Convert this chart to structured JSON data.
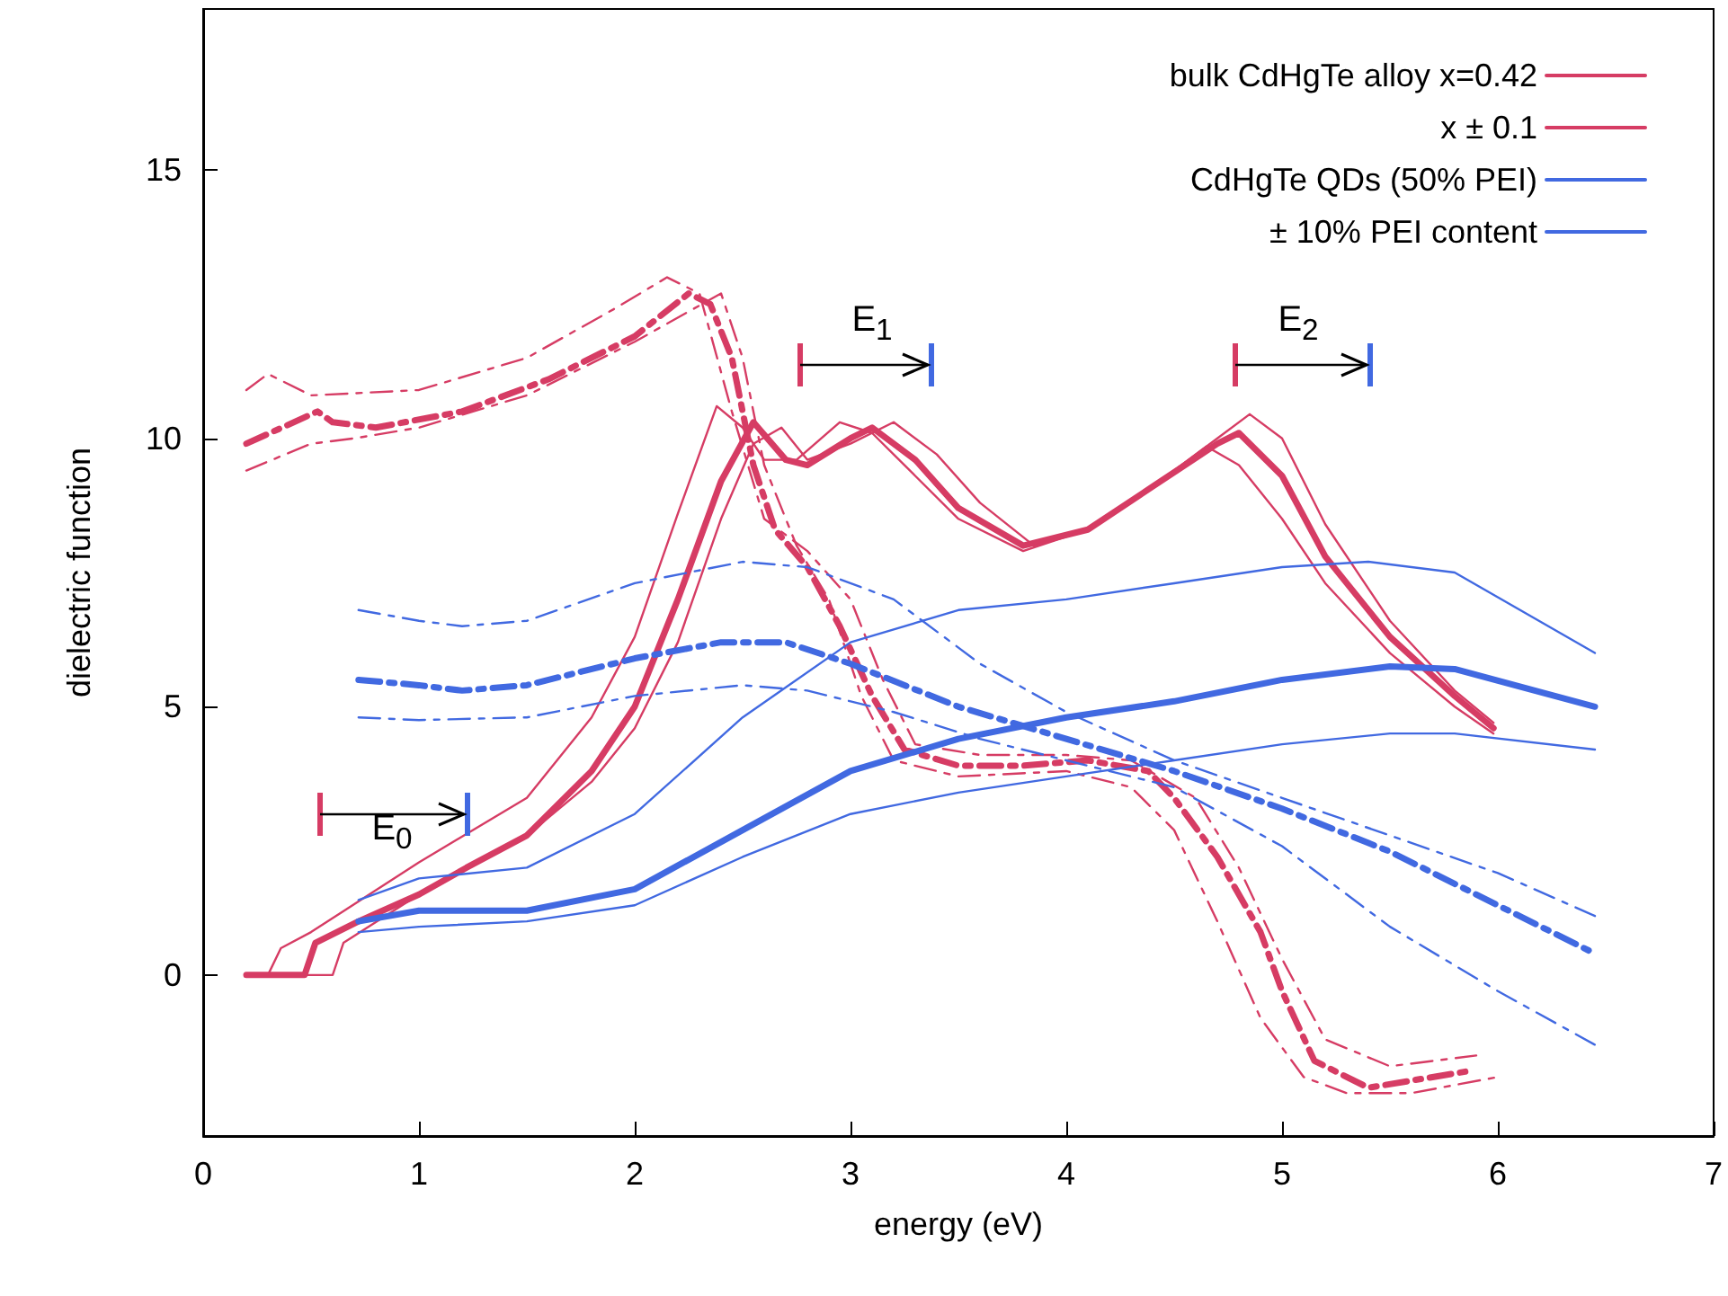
{
  "chart_data": {
    "type": "line",
    "xlabel": "energy (eV)",
    "ylabel": "dielectric function",
    "xlim": [
      0,
      7
    ],
    "xticks": [
      0,
      1,
      2,
      3,
      4,
      5,
      6,
      7
    ],
    "ylim": [
      -3,
      18
    ],
    "yticks": [
      0,
      5,
      10,
      15
    ],
    "grid": false,
    "legend": "top right",
    "marker": "none",
    "annotations": [
      "E$_{0}$",
      "E$_{1}$",
      "E$_{2}$"
    ],
    "series": [
      {
        "name": "bulk CdHgTe alloy x=0.42",
        "color": "#d63c64",
        "line_style": "solid",
        "x": [
          0.2,
          0.47,
          0.52,
          0.72,
          1.0,
          1.22,
          1.5,
          1.8,
          2.0,
          2.2,
          2.4,
          2.55,
          2.7,
          2.8,
          3.0,
          3.1,
          3.3,
          3.5,
          3.8,
          4.1,
          4.4,
          4.7,
          4.8,
          5.0,
          5.2,
          5.5,
          5.8,
          5.98
        ],
        "values": [
          0,
          0,
          0.6,
          1.0,
          1.5,
          2.0,
          2.6,
          3.8,
          5.0,
          7.0,
          9.2,
          10.3,
          9.6,
          9.5,
          10.0,
          10.2,
          9.6,
          8.7,
          8.0,
          8.3,
          9.1,
          9.9,
          10.1,
          9.3,
          7.8,
          6.3,
          5.2,
          4.6
        ]
      },
      {
        "name": "x ± 0.1",
        "color": "#d63c64",
        "line_style": "solid",
        "x": [
          0.2,
          0.3,
          0.36,
          0.5,
          1.0,
          1.5,
          1.8,
          2.0,
          2.2,
          2.38,
          2.5,
          2.6,
          2.75,
          2.95,
          3.1,
          3.3,
          3.5,
          3.8,
          4.1,
          4.4,
          4.65,
          4.8,
          5.0,
          5.2,
          5.5,
          5.8,
          5.98
        ],
        "values": [
          0,
          0,
          0.5,
          0.8,
          2.1,
          3.3,
          4.8,
          6.3,
          8.6,
          10.6,
          10.2,
          9.6,
          9.6,
          10.3,
          10.1,
          9.3,
          8.5,
          7.9,
          8.3,
          9.1,
          9.85,
          9.5,
          8.5,
          7.3,
          6.0,
          5.0,
          4.5
        ]
      },
      {
        "color": "#d63c64",
        "line_style": "solid",
        "x": [
          0.2,
          0.6,
          0.65,
          1.0,
          1.5,
          1.8,
          2.0,
          2.2,
          2.4,
          2.55,
          2.68,
          2.8,
          3.0,
          3.2,
          3.4,
          3.6,
          3.85,
          4.1,
          4.4,
          4.7,
          4.85,
          5.0,
          5.2,
          5.5,
          5.8,
          5.98
        ],
        "values": [
          0,
          0,
          0.6,
          1.5,
          2.6,
          3.6,
          4.6,
          6.2,
          8.5,
          9.9,
          10.2,
          9.6,
          9.9,
          10.3,
          9.7,
          8.8,
          8.0,
          8.3,
          9.1,
          10.0,
          10.45,
          10.0,
          8.4,
          6.6,
          5.3,
          4.7
        ]
      },
      {
        "color": "#d63c64",
        "line_style": "dashed",
        "x": [
          0.2,
          0.53,
          0.6,
          0.8,
          1.2,
          1.6,
          2.0,
          2.25,
          2.35,
          2.45,
          2.55,
          2.65,
          2.8,
          2.95,
          3.1,
          3.25,
          3.5,
          3.8,
          4.1,
          4.38,
          4.5,
          4.7,
          4.9,
          5.0,
          5.15,
          5.4,
          5.85
        ],
        "values": [
          9.9,
          10.5,
          10.3,
          10.2,
          10.5,
          11.1,
          11.9,
          12.7,
          12.5,
          11.5,
          9.5,
          8.3,
          7.6,
          6.5,
          5.2,
          4.2,
          3.9,
          3.9,
          4.0,
          3.8,
          3.3,
          2.2,
          0.8,
          -0.3,
          -1.6,
          -2.1,
          -1.8
        ]
      },
      {
        "color": "#d63c64",
        "line_style": "dashed",
        "x": [
          0.2,
          0.3,
          0.35,
          0.5,
          1.0,
          1.5,
          1.9,
          2.15,
          2.3,
          2.45,
          2.6,
          2.8,
          3.0,
          3.15,
          3.3,
          3.6,
          4.0,
          4.3,
          4.6,
          4.8,
          5.0,
          5.2,
          5.5,
          5.9
        ],
        "values": [
          10.9,
          11.2,
          11.1,
          10.8,
          10.9,
          11.5,
          12.4,
          13.0,
          12.7,
          10.5,
          8.5,
          7.9,
          7.0,
          5.5,
          4.3,
          4.1,
          4.1,
          4.0,
          3.3,
          2.0,
          0.3,
          -1.2,
          -1.7,
          -1.5
        ]
      },
      {
        "color": "#d63c64",
        "line_style": "dashed",
        "x": [
          0.2,
          0.5,
          0.7,
          1.0,
          1.5,
          2.0,
          2.4,
          2.5,
          2.6,
          2.75,
          2.9,
          3.05,
          3.2,
          3.5,
          4.0,
          4.3,
          4.5,
          4.7,
          4.9,
          5.1,
          5.3,
          5.6,
          6.0
        ],
        "values": [
          9.4,
          9.9,
          10.0,
          10.2,
          10.8,
          11.8,
          12.7,
          11.5,
          9.5,
          8.0,
          7.0,
          5.2,
          4.0,
          3.7,
          3.8,
          3.5,
          2.7,
          1.0,
          -0.8,
          -1.9,
          -2.2,
          -2.2,
          -1.9
        ]
      },
      {
        "name": "CdHgTe QDs (50% PEI)",
        "color": "#4169e1",
        "line_style": "solid",
        "x": [
          0.72,
          1.0,
          1.5,
          2.0,
          2.5,
          3.0,
          3.5,
          4.0,
          4.5,
          5.0,
          5.5,
          5.8,
          6.45
        ],
        "values": [
          1.0,
          1.2,
          1.2,
          1.6,
          2.7,
          3.8,
          4.4,
          4.8,
          5.1,
          5.5,
          5.75,
          5.7,
          5.0
        ]
      },
      {
        "name": "± 10% PEI content",
        "color": "#4169e1",
        "line_style": "solid",
        "x": [
          0.72,
          1.0,
          1.5,
          2.0,
          2.5,
          3.0,
          3.5,
          4.0,
          4.5,
          5.0,
          5.4,
          5.8,
          6.45
        ],
        "values": [
          1.4,
          1.8,
          2.0,
          3.0,
          4.8,
          6.2,
          6.8,
          7.0,
          7.3,
          7.6,
          7.7,
          7.5,
          6.0
        ]
      },
      {
        "color": "#4169e1",
        "line_style": "solid",
        "x": [
          0.72,
          1.0,
          1.5,
          2.0,
          2.5,
          3.0,
          3.5,
          4.0,
          4.5,
          5.0,
          5.5,
          5.8,
          6.45
        ],
        "values": [
          0.8,
          0.9,
          1.0,
          1.3,
          2.2,
          3.0,
          3.4,
          3.7,
          4.0,
          4.3,
          4.5,
          4.5,
          4.2
        ]
      },
      {
        "color": "#4169e1",
        "line_style": "dashed",
        "x": [
          0.72,
          1.0,
          1.2,
          1.5,
          2.0,
          2.4,
          2.7,
          3.0,
          3.5,
          4.0,
          4.5,
          5.0,
          5.5,
          6.0,
          6.45
        ],
        "values": [
          5.5,
          5.4,
          5.3,
          5.4,
          5.9,
          6.2,
          6.2,
          5.8,
          5.0,
          4.4,
          3.8,
          3.1,
          2.3,
          1.3,
          0.4
        ]
      },
      {
        "color": "#4169e1",
        "line_style": "dashed",
        "x": [
          0.72,
          1.0,
          1.2,
          1.5,
          2.0,
          2.5,
          2.8,
          3.2,
          3.6,
          4.0,
          4.5,
          5.0,
          5.5,
          6.0,
          6.45
        ],
        "values": [
          6.8,
          6.6,
          6.5,
          6.6,
          7.3,
          7.7,
          7.6,
          7.0,
          5.8,
          4.9,
          4.0,
          3.3,
          2.6,
          1.9,
          1.1
        ]
      },
      {
        "color": "#4169e1",
        "line_style": "dashed",
        "x": [
          0.72,
          1.0,
          1.5,
          2.0,
          2.5,
          2.8,
          3.2,
          3.6,
          4.0,
          4.5,
          5.0,
          5.5,
          6.0,
          6.45
        ],
        "values": [
          4.8,
          4.75,
          4.8,
          5.2,
          5.4,
          5.3,
          4.9,
          4.4,
          4.0,
          3.5,
          2.4,
          0.9,
          -0.3,
          -1.3
        ]
      }
    ]
  }
}
